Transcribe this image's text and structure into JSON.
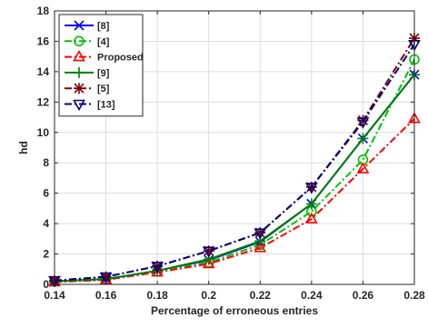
{
  "chart_data": {
    "type": "line",
    "xlabel": "Percentage of erroneous entries",
    "ylabel": "hd",
    "xlim": [
      0.14,
      0.28
    ],
    "ylim": [
      0,
      18
    ],
    "xticks": [
      "0.14",
      "0.16",
      "0.18",
      "0.2",
      "0.22",
      "0.24",
      "0.26",
      "0.28"
    ],
    "yticks": [
      "0",
      "2",
      "4",
      "6",
      "8",
      "10",
      "12",
      "14",
      "16",
      "18"
    ],
    "grid": true,
    "legend_position": "top-left",
    "x": [
      0.14,
      0.16,
      0.18,
      0.2,
      0.22,
      0.24,
      0.26,
      0.28
    ],
    "series": [
      {
        "name": "[8]",
        "color": "#0000ff",
        "linestyle": "solid",
        "marker": "x-mark",
        "values": [
          0.2,
          0.35,
          0.9,
          1.6,
          2.8,
          5.3,
          9.6,
          13.8
        ]
      },
      {
        "name": "[4]",
        "color": "#00c000",
        "linestyle": "dashdot",
        "marker": "circle",
        "values": [
          0.2,
          0.32,
          0.85,
          1.45,
          2.6,
          4.8,
          8.2,
          14.8
        ]
      },
      {
        "name": "Proposed",
        "color": "#ff0000",
        "linestyle": "dashdot",
        "marker": "triangle-up",
        "values": [
          0.15,
          0.3,
          0.8,
          1.35,
          2.4,
          4.3,
          7.6,
          10.9
        ]
      },
      {
        "name": "[9]",
        "color": "#008000",
        "linestyle": "solid",
        "marker": "plus",
        "values": [
          0.2,
          0.35,
          0.9,
          1.65,
          2.85,
          5.3,
          9.6,
          13.8
        ]
      },
      {
        "name": "[5]",
        "color": "#800000",
        "linestyle": "dashdot",
        "marker": "asterisk",
        "values": [
          0.25,
          0.5,
          1.2,
          2.2,
          3.4,
          6.4,
          10.8,
          16.2
        ]
      },
      {
        "name": "[13]",
        "color": "#000080",
        "linestyle": "dashdot",
        "marker": "triangle-down",
        "values": [
          0.25,
          0.5,
          1.2,
          2.2,
          3.4,
          6.4,
          10.7,
          15.8
        ]
      }
    ]
  }
}
